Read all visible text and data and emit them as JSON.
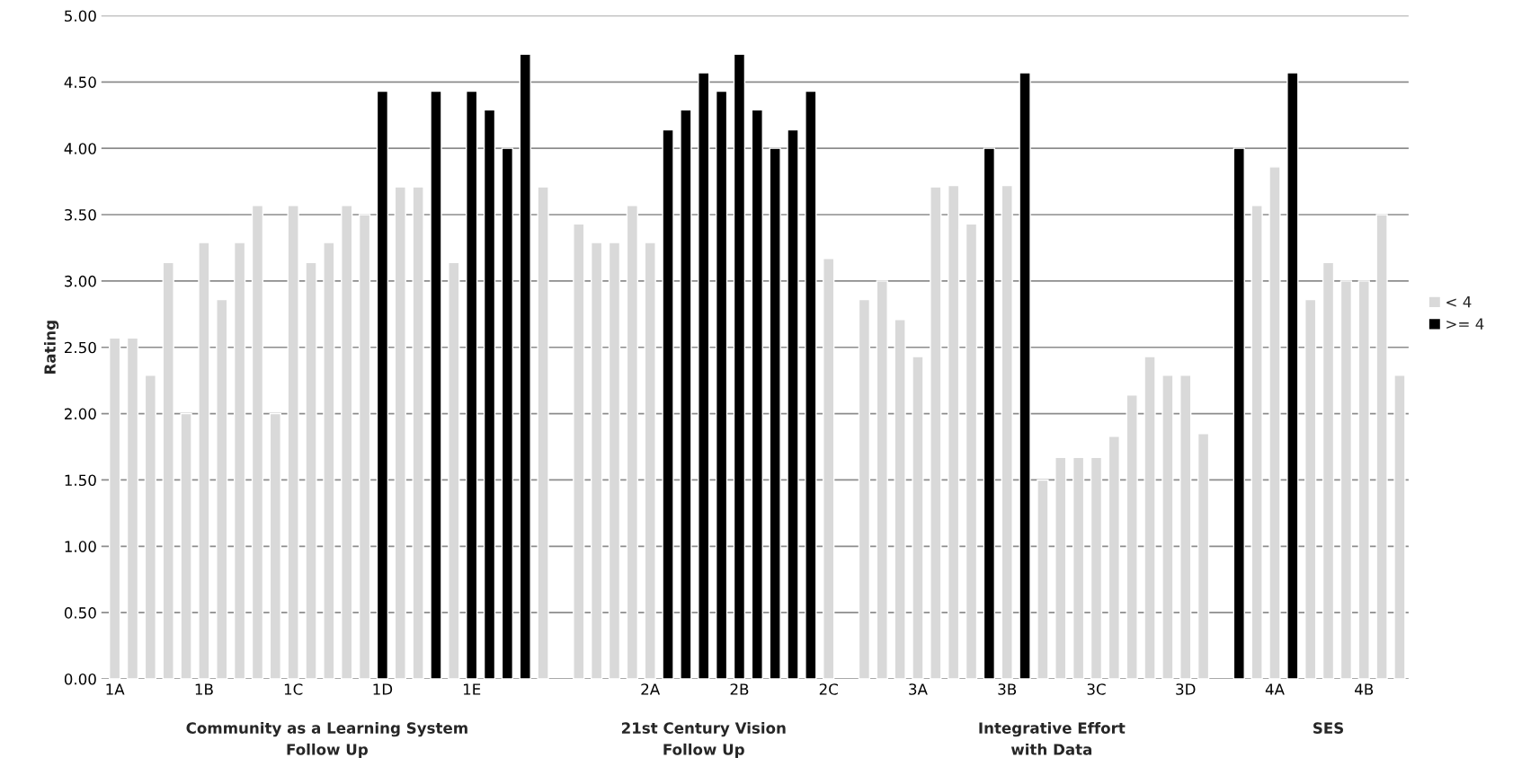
{
  "chart_data": {
    "type": "bar",
    "ylabel": "Rating",
    "categories": [
      "1A",
      null,
      null,
      null,
      null,
      "1B",
      null,
      null,
      null,
      null,
      "1C",
      null,
      null,
      null,
      null,
      "1D",
      null,
      null,
      null,
      null,
      "1E",
      null,
      null,
      null,
      null,
      null,
      null,
      null,
      null,
      null,
      "2A",
      null,
      null,
      null,
      null,
      "2B",
      null,
      null,
      null,
      null,
      "2C",
      null,
      null,
      null,
      null,
      "3A",
      null,
      null,
      null,
      null,
      "3B",
      null,
      null,
      null,
      null,
      "3C",
      null,
      null,
      null,
      null,
      "3D",
      null,
      null,
      null,
      null,
      "4A",
      null,
      null,
      null,
      null,
      "4B",
      null,
      null
    ],
    "series": [
      {
        "name": "< 4",
        "color": "#d9d9d9",
        "values": [
          2.57,
          2.57,
          2.29,
          3.14,
          2.0,
          3.29,
          2.86,
          3.29,
          3.57,
          2.0,
          3.57,
          3.14,
          3.29,
          3.57,
          3.5,
          null,
          3.71,
          3.71,
          null,
          3.14,
          null,
          null,
          null,
          null,
          3.71,
          null,
          3.43,
          3.29,
          3.29,
          3.57,
          3.29,
          null,
          null,
          null,
          null,
          null,
          null,
          null,
          null,
          null,
          3.17,
          null,
          2.86,
          3.0,
          2.71,
          2.43,
          3.71,
          3.72,
          3.43,
          null,
          3.72,
          null,
          1.5,
          1.67,
          1.67,
          1.67,
          1.83,
          2.14,
          2.43,
          2.29,
          2.29,
          1.85,
          null,
          null,
          3.57,
          3.86,
          null,
          2.86,
          3.14,
          3.0,
          3.0,
          3.5,
          2.29
        ]
      },
      {
        "name": ">= 4",
        "color": "#000000",
        "values": [
          null,
          null,
          null,
          null,
          null,
          null,
          null,
          null,
          null,
          null,
          null,
          null,
          null,
          null,
          null,
          4.43,
          null,
          null,
          4.43,
          null,
          4.43,
          4.29,
          4.0,
          4.71,
          null,
          null,
          null,
          null,
          null,
          null,
          null,
          4.14,
          4.29,
          4.57,
          4.43,
          4.71,
          4.29,
          4.0,
          4.14,
          4.43,
          null,
          null,
          null,
          null,
          null,
          null,
          null,
          null,
          null,
          4.0,
          null,
          4.57,
          null,
          null,
          null,
          null,
          null,
          null,
          null,
          null,
          null,
          null,
          null,
          4.0,
          null,
          null,
          4.57,
          null,
          null,
          null,
          null,
          null,
          null
        ]
      }
    ],
    "ylim": [
      0,
      5
    ],
    "yticks": [
      {
        "value": 0,
        "label": "0.00"
      },
      {
        "value": 0.5,
        "label": "0.50"
      },
      {
        "value": 1,
        "label": "1.00"
      },
      {
        "value": 1.5,
        "label": "1.50"
      },
      {
        "value": 2,
        "label": "2.00"
      },
      {
        "value": 2.5,
        "label": "2.50"
      },
      {
        "value": 3,
        "label": "3.00"
      },
      {
        "value": 3.5,
        "label": "3.50"
      },
      {
        "value": 4,
        "label": "4.00"
      },
      {
        "value": 4.5,
        "label": "4.50"
      },
      {
        "value": 5,
        "label": "5.00"
      }
    ],
    "grid": "y",
    "legend": "right",
    "annotations": [
      "Community as a Learning System\nFollow Up",
      "21st Century Vision\nFollow Up",
      "Integrative Effort\nwith Data",
      "SES"
    ]
  }
}
